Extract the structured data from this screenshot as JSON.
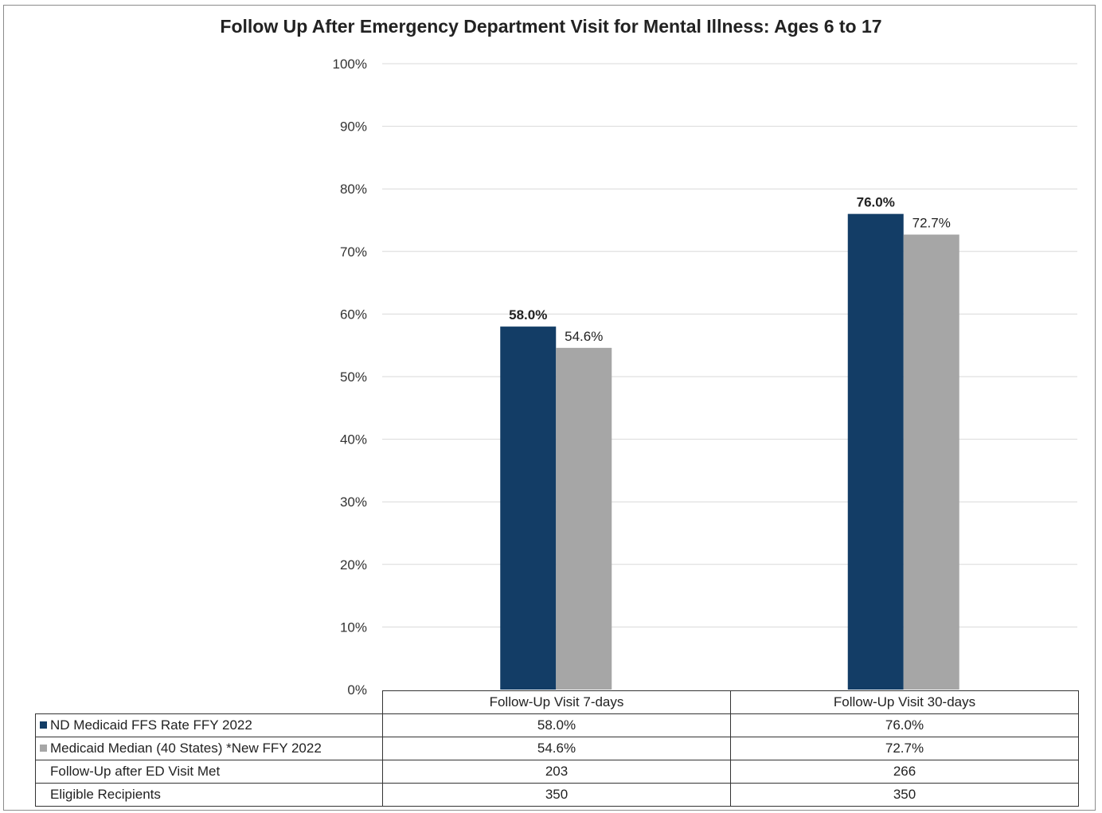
{
  "chart_data": {
    "type": "bar",
    "title": "Follow Up After Emergency Department Visit for Mental Illness: Ages 6 to 17",
    "categories": [
      "Follow-Up Visit 7-days",
      "Follow-Up Visit 30-days"
    ],
    "series": [
      {
        "name": "ND Medicaid FFS Rate FFY 2022",
        "values": [
          58.0,
          76.0
        ],
        "labels": [
          "58.0%",
          "76.0%"
        ],
        "color": "#133d66",
        "label_bold": true
      },
      {
        "name": "Medicaid Median (40 States) *New FFY 2022",
        "values": [
          54.6,
          72.7
        ],
        "labels": [
          "54.6%",
          "72.7%"
        ],
        "color": "#a6a6a6",
        "label_bold": false
      }
    ],
    "ylim": [
      0,
      100
    ],
    "yticks": [
      "0%",
      "10%",
      "20%",
      "30%",
      "40%",
      "50%",
      "60%",
      "70%",
      "80%",
      "90%",
      "100%"
    ],
    "grid": true,
    "legend": "data-table",
    "table": {
      "header": [
        "Follow-Up Visit 7-days",
        "Follow-Up Visit 30-days"
      ],
      "rows": [
        {
          "label": "ND Medicaid FFS Rate FFY 2022",
          "values": [
            "58.0%",
            "76.0%"
          ],
          "swatch": "#133d66"
        },
        {
          "label": "Medicaid Median (40 States) *New FFY 2022",
          "values": [
            "54.6%",
            "72.7%"
          ],
          "swatch": "#a6a6a6"
        },
        {
          "label": "Follow-Up after ED Visit Met",
          "values": [
            "203",
            "266"
          ]
        },
        {
          "label": "Eligible Recipients",
          "values": [
            "350",
            "350"
          ]
        }
      ]
    }
  }
}
